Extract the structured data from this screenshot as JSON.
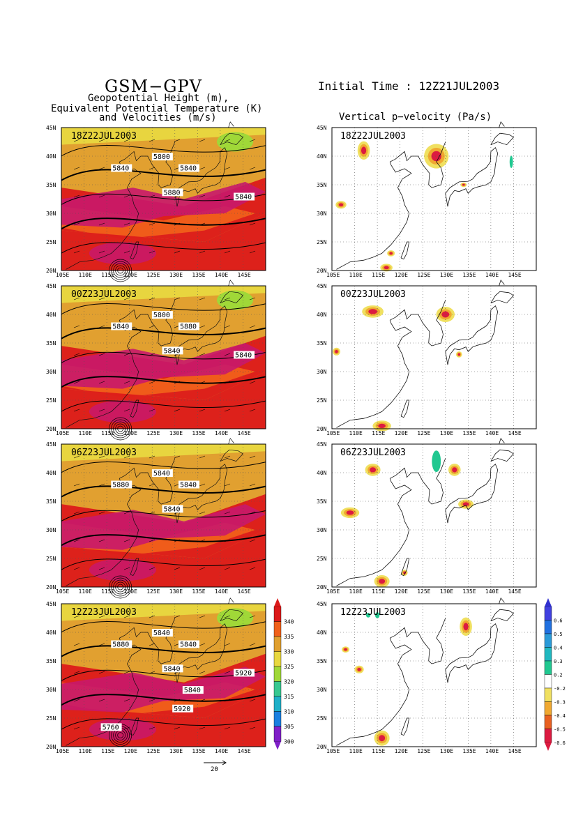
{
  "left_header": {
    "title": "GSM−GPV",
    "line1": "Geopotential Height (m),",
    "line2": "Equivalent Potential Temperature (K)",
    "line3": "and Velocities (m/s)"
  },
  "right_header": {
    "initial_time": "Initial Time : 12Z21JUL2003",
    "subtitle": "Vertical p−velocity (Pa/s)"
  },
  "axes": {
    "x_ticks": [
      "105E",
      "110E",
      "115E",
      "120E",
      "125E",
      "130E",
      "135E",
      "140E",
      "145E"
    ],
    "y_ticks": [
      "20N",
      "25N",
      "30N",
      "35N",
      "40N",
      "45N"
    ]
  },
  "panels": [
    {
      "time": "18Z22JUL2003",
      "height_labels": [
        "5800",
        "5840",
        "5840",
        "5880",
        "5840"
      ]
    },
    {
      "time": "00Z23JUL2003",
      "height_labels": [
        "5800",
        "5840",
        "5880",
        "5840",
        "5840"
      ]
    },
    {
      "time": "06Z23JUL2003",
      "height_labels": [
        "5840",
        "5880",
        "5840",
        "5840"
      ]
    },
    {
      "time": "12Z23JUL2003",
      "height_labels": [
        "5840",
        "5880",
        "5840",
        "5840",
        "5920",
        "5840",
        "5920",
        "5760"
      ]
    }
  ],
  "theta_e_colorbar": {
    "labels": [
      "340",
      "335",
      "330",
      "325",
      "320",
      "315",
      "310",
      "305",
      "300"
    ],
    "colors": [
      "#dc1a1a",
      "#f0601a",
      "#e0a030",
      "#e8d840",
      "#a0d838",
      "#38c890",
      "#20b0c8",
      "#1a80e0",
      "#8020c8"
    ]
  },
  "omega_colorbar": {
    "labels": [
      "0.6",
      "0.5",
      "0.4",
      "0.3",
      "0.2",
      "-0.2",
      "-0.3",
      "-0.4",
      "-0.5",
      "-0.6"
    ],
    "colors": [
      "#4040e0",
      "#2070e0",
      "#2a9ad8",
      "#20b8c0",
      "#20c890",
      "#ffffff",
      "#f0e060",
      "#f0a830",
      "#e86020",
      "#dc1a40"
    ]
  },
  "vector_reference": "20"
}
